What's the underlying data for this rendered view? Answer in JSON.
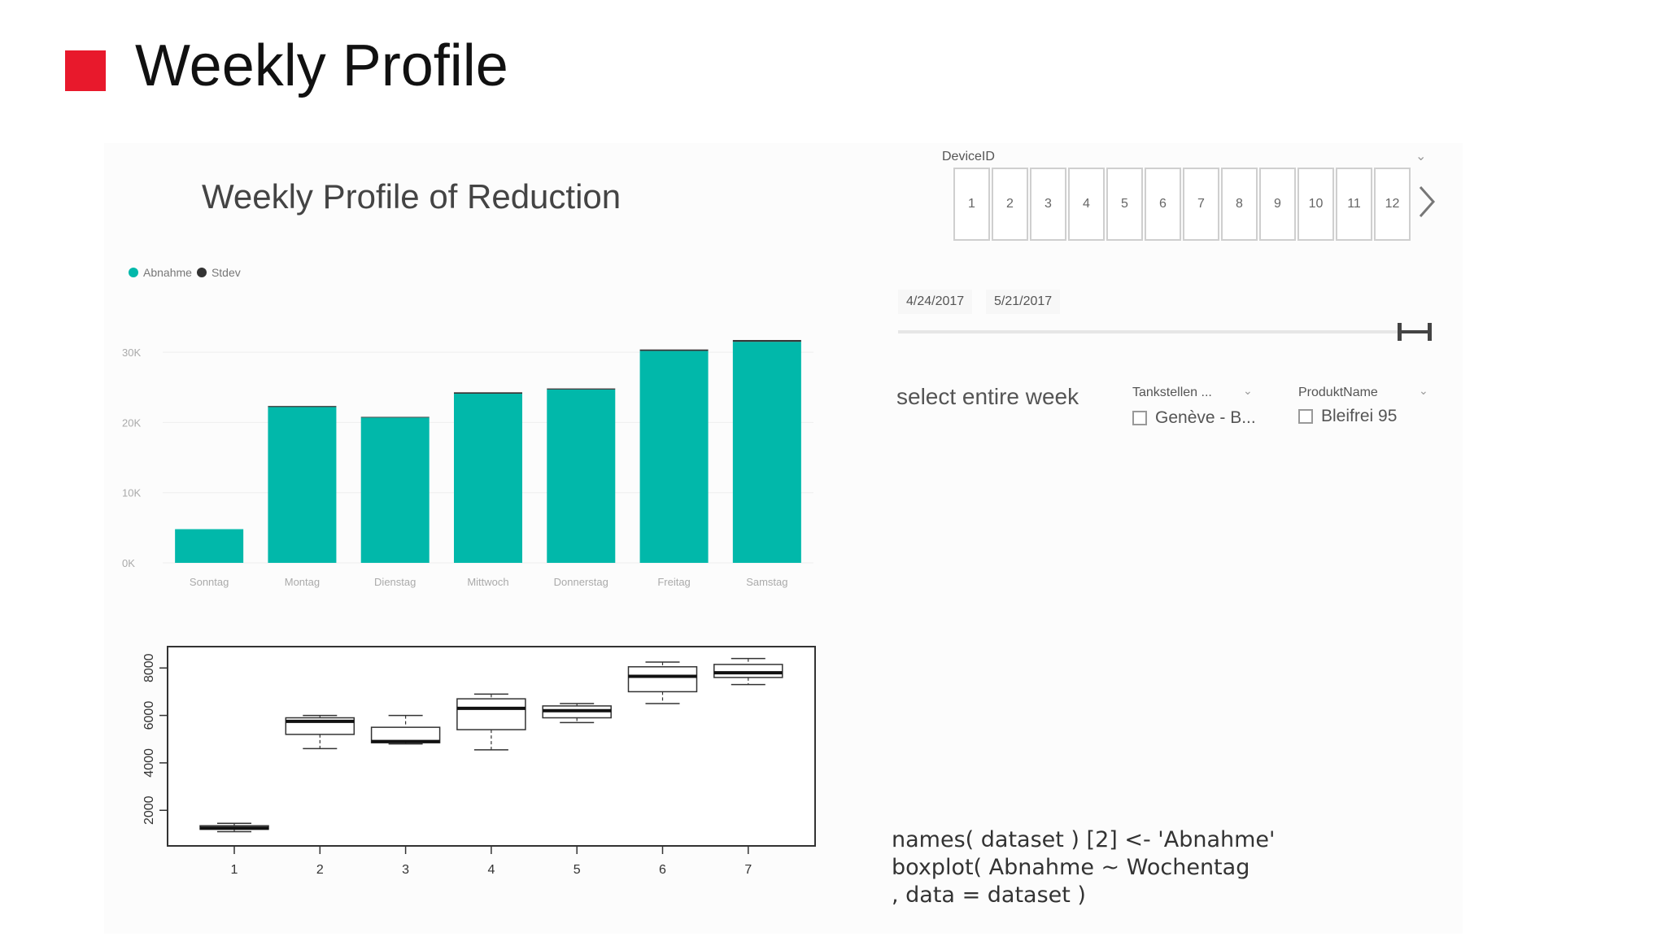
{
  "slide": {
    "title": "Weekly Profile",
    "accent_color": "#e8192c"
  },
  "bar_chart_panel": {
    "title": "Weekly Profile of Reduction",
    "legend": [
      {
        "label": "Abnahme",
        "color": "#01b8aa"
      },
      {
        "label": "Stdev",
        "color": "#333333"
      }
    ]
  },
  "chart_data": [
    {
      "type": "bar",
      "title": "Weekly Profile of Reduction",
      "categories": [
        "Sonntag",
        "Montag",
        "Dienstag",
        "Mittwoch",
        "Donnerstag",
        "Freitag",
        "Samstag"
      ],
      "series": [
        {
          "name": "Abnahme",
          "color": "#01b8aa",
          "values": [
            4800,
            22200,
            20700,
            24100,
            24700,
            30200,
            31500
          ]
        },
        {
          "name": "Stdev",
          "color": "#333333",
          "values": [
            0,
            150,
            100,
            200,
            150,
            200,
            250
          ]
        }
      ],
      "ytick_labels": [
        "0K",
        "10K",
        "20K",
        "30K"
      ],
      "ylim": [
        0,
        35000
      ],
      "grid": true,
      "legend": "top-left"
    },
    {
      "type": "boxplot",
      "categories": [
        "1",
        "2",
        "3",
        "4",
        "5",
        "6",
        "7"
      ],
      "boxes": [
        {
          "min": 1100,
          "q1": 1200,
          "median": 1250,
          "q3": 1350,
          "max": 1450
        },
        {
          "min": 4600,
          "q1": 5200,
          "median": 5750,
          "q3": 5900,
          "max": 6000
        },
        {
          "min": 4800,
          "q1": 4850,
          "median": 4900,
          "q3": 5500,
          "max": 6000
        },
        {
          "min": 4550,
          "q1": 5400,
          "median": 6300,
          "q3": 6700,
          "max": 6900
        },
        {
          "min": 5700,
          "q1": 5900,
          "median": 6200,
          "q3": 6400,
          "max": 6500
        },
        {
          "min": 6500,
          "q1": 7000,
          "median": 7650,
          "q3": 8050,
          "max": 8250
        },
        {
          "min": 7300,
          "q1": 7600,
          "median": 7800,
          "q3": 8150,
          "max": 8400
        }
      ],
      "yticks": [
        2000,
        4000,
        6000,
        8000
      ],
      "ylim": [
        500,
        8900
      ]
    }
  ],
  "device_slicer": {
    "label": "DeviceID",
    "chevron_icon": "chevron-down-icon",
    "items": [
      "1",
      "2",
      "3",
      "4",
      "5",
      "6",
      "7",
      "8",
      "9",
      "10",
      "11",
      "12"
    ],
    "next_icon": "chevron-right-icon"
  },
  "date_slicer": {
    "start": "4/24/2017",
    "end": "5/21/2017"
  },
  "select_week": "select entire week",
  "tankstellen_slicer": {
    "label": "Tankstellen ...",
    "item": "Genève - B..."
  },
  "produkt_slicer": {
    "label": "ProduktName",
    "item": "Bleifrei 95"
  },
  "code": [
    "names( dataset ) [2] <- 'Abnahme'",
    "boxplot( Abnahme ~ Wochentag",
    ", data = dataset )"
  ]
}
